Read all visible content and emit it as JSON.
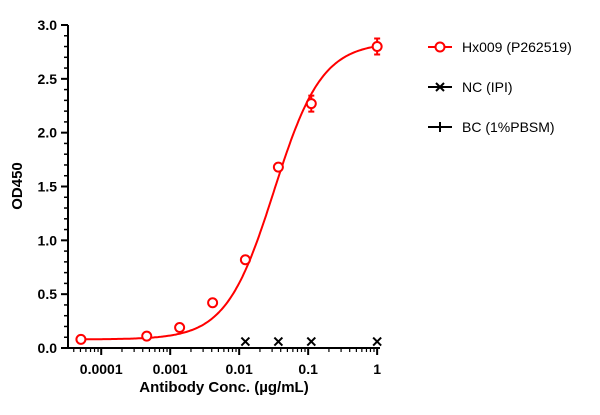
{
  "chart_data": {
    "type": "scatter",
    "title": "",
    "xlabel": "Antibody Conc. (µg/mL)",
    "ylabel": "OD450",
    "xscale": "log",
    "xlim": [
      3.3e-05,
      1.1
    ],
    "ylim": [
      0,
      3.0
    ],
    "xticks": [
      0.0001,
      0.001,
      0.01,
      0.1,
      1
    ],
    "xtick_labels": [
      "0.0001",
      "0.001",
      "0.01",
      "0.1",
      "1"
    ],
    "yticks": [
      0,
      0.5,
      1.0,
      1.5,
      2.0,
      2.5,
      3.0
    ],
    "ytick_labels": [
      "0.0",
      "0.5",
      "1.0",
      "1.5",
      "2.0",
      "2.5",
      "3.0"
    ],
    "grid": false,
    "legend_position": "right",
    "series": [
      {
        "name": "Hx009 (P262519)",
        "color": "#ff0000",
        "marker": "open-circle",
        "fit": "sigmoidal curve",
        "x": [
          5.08e-05,
          0.000457,
          0.00137,
          0.00412,
          0.0123,
          0.037,
          0.111,
          1
        ],
        "y": [
          0.08,
          0.11,
          0.19,
          0.42,
          0.82,
          1.68,
          2.27,
          2.8
        ]
      },
      {
        "name": "NC (IPI)",
        "color": "#000000",
        "marker": "x",
        "x": [
          0.0123,
          0.037,
          0.111,
          1
        ],
        "y": [
          0.06,
          0.06,
          0.06,
          0.06
        ]
      },
      {
        "name": "BC (1%PBSM)",
        "color": "#000000",
        "marker": "plus",
        "x": [],
        "y": []
      }
    ]
  }
}
